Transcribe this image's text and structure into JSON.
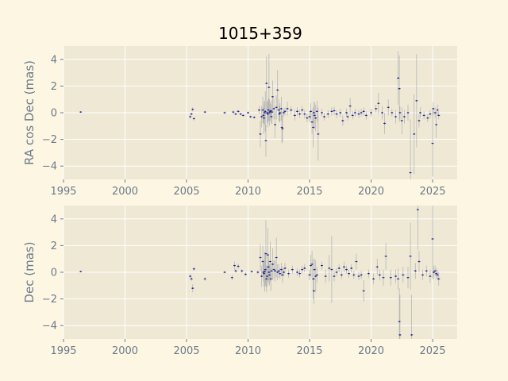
{
  "chart_data": [
    {
      "type": "scatter",
      "title": "1015+359",
      "xlabel": "",
      "ylabel": "RA cos Dec (mas)",
      "xlim": [
        1995,
        2027
      ],
      "ylim": [
        -5,
        5
      ],
      "xticks": [
        "1995",
        "2000",
        "2005",
        "2010",
        "2015",
        "2020",
        "2025"
      ],
      "yticks": [
        "4",
        "2",
        "0",
        "−2",
        "−4"
      ],
      "grid": true,
      "marker_color": "#1f1f8f",
      "errorbar_color": "#b0b0b0",
      "background": "#eee8d5",
      "series": [
        {
          "x": [
            1996.4,
            2005.3,
            2005.4,
            2005.5,
            2005.6,
            2006.5,
            2008.1,
            2008.8,
            2009.0,
            2009.2,
            2009.4,
            2009.6,
            2010.0,
            2010.2,
            2010.5,
            2010.9,
            2011.0,
            2011.1,
            2011.2,
            2011.25,
            2011.3,
            2011.35,
            2011.4,
            2011.45,
            2011.5,
            2011.55,
            2011.6,
            2011.65,
            2011.7,
            2011.75,
            2011.8,
            2011.85,
            2011.9,
            2011.95,
            2012.0,
            2012.1,
            2012.2,
            2012.3,
            2012.4,
            2012.5,
            2012.55,
            2012.6,
            2012.7,
            2012.75,
            2012.8,
            2012.9,
            2013.0,
            2013.2,
            2013.5,
            2013.8,
            2014.0,
            2014.2,
            2014.4,
            2014.6,
            2014.8,
            2015.0,
            2015.1,
            2015.2,
            2015.3,
            2015.35,
            2015.4,
            2015.5,
            2015.6,
            2015.7,
            2016.0,
            2016.2,
            2016.5,
            2016.8,
            2017.0,
            2017.2,
            2017.5,
            2017.7,
            2018.0,
            2018.1,
            2018.3,
            2018.5,
            2018.7,
            2019.0,
            2019.2,
            2019.4,
            2019.6,
            2020.0,
            2020.4,
            2020.6,
            2020.9,
            2021.1,
            2021.4,
            2021.7,
            2022.0,
            2022.2,
            2022.3,
            2022.35,
            2022.5,
            2022.7,
            2023.0,
            2023.2,
            2023.5,
            2023.7,
            2023.9,
            2024.0,
            2024.3,
            2024.6,
            2024.8,
            2025.0,
            2025.05,
            2025.2,
            2025.3,
            2025.4,
            2025.5
          ],
          "y": [
            0.05,
            -0.3,
            -0.1,
            0.25,
            -0.45,
            0.05,
            0.0,
            0.05,
            -0.1,
            0.1,
            -0.1,
            -0.2,
            0.0,
            -0.3,
            -0.35,
            0.2,
            -1.6,
            -0.3,
            0.2,
            -0.2,
            -0.4,
            0.0,
            0.1,
            -2.1,
            2.2,
            0.0,
            -0.1,
            0.2,
            1.9,
            0.0,
            0.1,
            0.15,
            -0.3,
            0.05,
            1.2,
            0.3,
            -0.9,
            0.4,
            1.7,
            0.2,
            -0.1,
            0.0,
            0.3,
            -1.1,
            -1.2,
            0.0,
            0.1,
            0.3,
            0.2,
            -0.2,
            0.1,
            -0.1,
            0.2,
            -0.1,
            -0.4,
            -0.3,
            0.1,
            -0.7,
            -1.1,
            0.0,
            -0.2,
            -0.4,
            0.1,
            -1.6,
            0.0,
            -0.3,
            -0.1,
            0.1,
            0.15,
            -0.1,
            0.0,
            -0.6,
            0.0,
            -0.3,
            0.5,
            -0.2,
            0.0,
            -0.1,
            0.0,
            0.1,
            -0.2,
            0.0,
            0.3,
            0.7,
            0.0,
            -0.8,
            0.4,
            0.0,
            -0.3,
            2.6,
            1.8,
            0.0,
            -0.6,
            -0.3,
            0.0,
            -4.5,
            -1.6,
            0.9,
            -0.6,
            0.0,
            -0.2,
            -0.4,
            -0.1,
            -2.3,
            0.3,
            0.0,
            -0.9,
            0.2,
            -0.2
          ],
          "err": [
            0.05,
            0.15,
            0.1,
            0.15,
            0.15,
            0.1,
            0.1,
            0.15,
            0.1,
            0.1,
            0.1,
            0.1,
            0.1,
            0.1,
            0.1,
            0.3,
            1.0,
            0.8,
            1.0,
            0.6,
            1.2,
            0.9,
            1.5,
            1.2,
            2.0,
            0.8,
            1.0,
            0.9,
            2.5,
            1.0,
            0.7,
            0.5,
            0.5,
            0.9,
            1.2,
            0.8,
            1.0,
            0.9,
            1.5,
            0.8,
            0.6,
            0.7,
            0.9,
            1.2,
            1.0,
            0.3,
            0.3,
            0.5,
            0.3,
            0.4,
            0.3,
            0.3,
            0.3,
            0.3,
            0.3,
            0.4,
            0.6,
            0.9,
            1.5,
            0.8,
            1.0,
            1.0,
            0.8,
            2.0,
            0.3,
            0.3,
            0.3,
            0.3,
            0.3,
            0.3,
            0.3,
            0.4,
            0.3,
            0.3,
            0.6,
            0.3,
            0.3,
            0.3,
            0.3,
            0.3,
            0.3,
            0.3,
            0.3,
            0.8,
            0.5,
            0.8,
            0.6,
            0.3,
            0.5,
            2.0,
            2.5,
            0.5,
            1.0,
            0.5,
            0.6,
            4.0,
            3.0,
            3.5,
            0.5,
            0.4,
            0.3,
            0.3,
            0.3,
            2.5,
            0.5,
            0.4,
            1.0,
            0.4,
            0.3
          ]
        }
      ]
    },
    {
      "type": "scatter",
      "title": "",
      "xlabel": "",
      "ylabel": "Dec (mas)",
      "xlim": [
        1995,
        2027
      ],
      "ylim": [
        -5,
        5
      ],
      "xticks": [
        "1995",
        "2000",
        "2005",
        "2010",
        "2015",
        "2020",
        "2025"
      ],
      "yticks": [
        "4",
        "2",
        "0",
        "−2",
        "−4"
      ],
      "grid": true,
      "marker_color": "#1f1f8f",
      "errorbar_color": "#b0b0b0",
      "background": "#eee8d5",
      "series": [
        {
          "x": [
            1996.4,
            2005.3,
            2005.4,
            2005.5,
            2005.6,
            2006.5,
            2008.1,
            2008.7,
            2008.9,
            2009.0,
            2009.2,
            2009.5,
            2009.8,
            2010.3,
            2010.8,
            2011.0,
            2011.1,
            2011.2,
            2011.25,
            2011.3,
            2011.35,
            2011.4,
            2011.45,
            2011.5,
            2011.55,
            2011.6,
            2011.65,
            2011.7,
            2011.75,
            2011.8,
            2011.85,
            2011.9,
            2012.0,
            2012.1,
            2012.2,
            2012.3,
            2012.4,
            2012.5,
            2012.6,
            2012.7,
            2012.8,
            2012.9,
            2013.0,
            2013.3,
            2013.6,
            2014.0,
            2014.2,
            2014.4,
            2014.6,
            2015.0,
            2015.1,
            2015.2,
            2015.3,
            2015.35,
            2015.4,
            2015.5,
            2015.6,
            2016.0,
            2016.3,
            2016.6,
            2016.8,
            2017.0,
            2017.2,
            2017.4,
            2017.6,
            2017.8,
            2018.0,
            2018.2,
            2018.4,
            2018.6,
            2018.8,
            2019.0,
            2019.2,
            2019.4,
            2019.8,
            2020.2,
            2020.5,
            2020.7,
            2021.0,
            2021.2,
            2021.6,
            2022.0,
            2022.2,
            2022.3,
            2022.35,
            2022.6,
            2023.0,
            2023.2,
            2023.3,
            2023.6,
            2023.8,
            2023.9,
            2024.2,
            2024.5,
            2024.8,
            2025.0,
            2025.1,
            2025.2,
            2025.3,
            2025.4,
            2025.5
          ],
          "y": [
            0.05,
            -0.3,
            -0.5,
            -1.2,
            0.25,
            -0.5,
            0.0,
            -0.4,
            0.5,
            0.1,
            0.45,
            0.1,
            -0.15,
            0.05,
            0.0,
            1.1,
            -0.3,
            0.8,
            0.0,
            -0.1,
            0.05,
            0.2,
            1.4,
            -0.5,
            -0.3,
            1.3,
            0.4,
            0.0,
            -0.2,
            0.8,
            -0.5,
            0.1,
            0.6,
            0.2,
            0.1,
            1.1,
            0.0,
            0.1,
            -0.1,
            0.2,
            -0.2,
            0.0,
            0.3,
            -0.1,
            0.2,
            0.0,
            -0.1,
            0.2,
            0.3,
            -0.2,
            0.5,
            0.6,
            -0.5,
            -1.4,
            0.2,
            -0.3,
            -0.2,
            0.5,
            -0.3,
            0.3,
            0.2,
            -0.3,
            0.0,
            0.3,
            -0.2,
            0.4,
            0.2,
            -0.1,
            0.3,
            -0.2,
            0.8,
            -0.3,
            -0.2,
            -1.4,
            -0.1,
            -0.5,
            0.4,
            -0.2,
            -0.4,
            1.2,
            -0.4,
            -0.3,
            -0.5,
            -3.7,
            -4.7,
            -0.2,
            -0.4,
            1.2,
            -4.7,
            0.1,
            4.7,
            0.8,
            -0.2,
            0.1,
            -0.3,
            2.5,
            0.0,
            0.1,
            -0.1,
            -0.2,
            -0.5
          ],
          "err": [
            0.05,
            0.15,
            0.15,
            0.3,
            0.15,
            0.15,
            0.1,
            0.2,
            0.3,
            0.15,
            0.2,
            0.15,
            0.15,
            0.1,
            0.15,
            1.0,
            0.8,
            1.2,
            0.7,
            1.0,
            1.5,
            1.2,
            2.5,
            1.0,
            0.8,
            2.0,
            1.0,
            0.9,
            0.8,
            1.5,
            0.9,
            0.6,
            1.2,
            0.7,
            0.8,
            1.5,
            0.6,
            0.5,
            0.4,
            0.5,
            0.6,
            0.3,
            0.4,
            0.3,
            0.3,
            0.3,
            0.3,
            0.3,
            0.3,
            0.4,
            0.8,
            1.0,
            1.5,
            1.0,
            0.8,
            1.2,
            0.6,
            0.3,
            0.5,
            1.0,
            2.5,
            0.4,
            0.3,
            0.3,
            0.3,
            0.4,
            0.3,
            0.3,
            0.3,
            0.3,
            0.6,
            0.3,
            0.3,
            0.8,
            0.3,
            0.4,
            0.6,
            0.4,
            0.6,
            1.0,
            0.6,
            0.5,
            0.8,
            2.5,
            3.0,
            0.6,
            0.8,
            2.5,
            3.0,
            0.6,
            3.0,
            0.8,
            0.4,
            0.4,
            0.5,
            3.0,
            0.5,
            0.4,
            0.4,
            0.4,
            0.5
          ]
        }
      ]
    }
  ]
}
